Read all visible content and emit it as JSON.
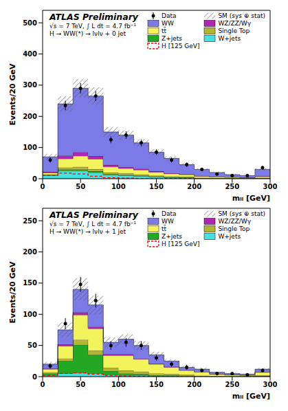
{
  "chart_data": [
    {
      "type": "histogram",
      "title": "ATLAS Preliminary",
      "subtitle": "√s = 7 TeV, ∫ L dt = 4.7 fb⁻¹",
      "annotations": [
        "H → WW(*) → lνlν + 0 jet"
      ],
      "x_label": "mₗₗ [GeV]",
      "y_label": "Events/20 GeV",
      "bins": [
        0,
        20,
        40,
        60,
        80,
        100,
        120,
        140,
        160,
        180,
        200,
        220,
        240,
        260,
        280,
        300
      ],
      "xlim": [
        0,
        300
      ],
      "xticks": [
        0,
        50,
        100,
        150,
        200,
        250,
        300
      ],
      "ylim": [
        0,
        540
      ],
      "yticks": [
        0,
        100,
        200,
        300,
        400,
        500
      ],
      "stacked": true,
      "legend": "top-right",
      "grid": false,
      "series": [
        {
          "name": "Data",
          "type": "scatter",
          "color": "#000000",
          "marker": "circle",
          "values": [
            60,
            235,
            290,
            265,
            125,
            140,
            115,
            85,
            60,
            45,
            30,
            15,
            10,
            10,
            35
          ],
          "errors": [
            8,
            15,
            17,
            16,
            11,
            12,
            11,
            9,
            8,
            7,
            5,
            4,
            3,
            3,
            6
          ]
        },
        {
          "name": "SM (sys ⊕ stat)",
          "type": "band",
          "color": "#555555",
          "errors": [
            10,
            25,
            30,
            28,
            16,
            15,
            12,
            9,
            7,
            5,
            3,
            2,
            2,
            1.5,
            4
          ]
        },
        {
          "name": "WW",
          "type": "area",
          "color": "#7b7be8",
          "values": [
            48,
            166,
            205,
            192,
            106,
            102,
            83,
            61,
            47,
            30,
            21,
            13,
            8,
            6,
            22
          ]
        },
        {
          "name": "WZ/ZZ/Wγ",
          "type": "area",
          "color": "#b026b0",
          "values": [
            3,
            10,
            12,
            10,
            6,
            5,
            4,
            3,
            2,
            2,
            1,
            1,
            0.5,
            0.5,
            1
          ]
        },
        {
          "name": "tt̄",
          "type": "area",
          "color": "#f2f25a",
          "values": [
            5,
            28,
            35,
            32,
            18,
            16,
            14,
            11,
            9,
            7,
            5,
            4,
            3,
            2,
            4
          ]
        },
        {
          "name": "Single Top",
          "type": "area",
          "color": "#b5b535",
          "values": [
            2,
            6,
            8,
            7,
            5,
            5,
            4,
            3,
            2,
            2,
            1,
            1,
            0.5,
            0.5,
            1
          ]
        },
        {
          "name": "Z+jets",
          "type": "area",
          "color": "#22a822",
          "values": [
            2,
            5,
            5,
            4,
            3,
            2,
            2,
            1,
            1,
            1,
            0,
            0,
            0,
            0,
            0
          ]
        },
        {
          "name": "W+jets",
          "type": "area",
          "color": "#45e0e0",
          "values": [
            10,
            25,
            25,
            20,
            12,
            10,
            8,
            6,
            4,
            3,
            2,
            1,
            1,
            1,
            2
          ]
        },
        {
          "name": "H [125 GeV]",
          "type": "line",
          "color": "#ff0000",
          "line_style": "dashed",
          "values": [
            10,
            18,
            15,
            8,
            3,
            2,
            1,
            1,
            0.5,
            0.5,
            0,
            0,
            0,
            0,
            0
          ]
        }
      ]
    },
    {
      "type": "histogram",
      "title": "ATLAS Preliminary",
      "subtitle": "√s = 7 TeV, ∫ L dt = 4.7 fb⁻¹",
      "annotations": [
        "H → WW(*) → lνlν + 1 jet"
      ],
      "x_label": "mₗₗ [GeV]",
      "y_label": "Events/20 GeV",
      "bins": [
        0,
        20,
        40,
        60,
        80,
        100,
        120,
        140,
        160,
        180,
        200,
        220,
        240,
        260,
        280,
        300
      ],
      "xlim": [
        0,
        300
      ],
      "xticks": [
        0,
        50,
        100,
        150,
        200,
        250,
        300
      ],
      "ylim": [
        0,
        270
      ],
      "yticks": [
        0,
        50,
        100,
        150,
        200,
        250
      ],
      "stacked": true,
      "legend": "top-right",
      "grid": false,
      "series": [
        {
          "name": "Data",
          "type": "scatter",
          "color": "#000000",
          "marker": "circle",
          "values": [
            17,
            85,
            148,
            122,
            50,
            55,
            50,
            30,
            20,
            15,
            10,
            5,
            5,
            3,
            10
          ],
          "errors": [
            4,
            9,
            12,
            11,
            7,
            7,
            7,
            5,
            4,
            4,
            3,
            2,
            2,
            2,
            3
          ]
        },
        {
          "name": "SM (sys ⊕ stat)",
          "type": "band",
          "color": "#555555",
          "errors": [
            4,
            12,
            18,
            15,
            8,
            8,
            7,
            5,
            3,
            2,
            2,
            1,
            1,
            0.8,
            2
          ]
        },
        {
          "name": "WW",
          "type": "area",
          "color": "#7b7be8",
          "values": [
            7,
            23,
            37,
            35,
            19,
            24,
            21,
            14,
            9,
            4.5,
            4,
            2.7,
            2.1,
            1.7,
            4.5
          ]
        },
        {
          "name": "WZ/ZZ/Wγ",
          "type": "area",
          "color": "#b026b0",
          "values": [
            1,
            3,
            4,
            3,
            2,
            2,
            1,
            1,
            1,
            0.5,
            0.5,
            0.3,
            0.2,
            0.2,
            0.5
          ]
        },
        {
          "name": "tt̄",
          "type": "area",
          "color": "#f2f25a",
          "values": [
            5,
            20,
            40,
            35,
            20,
            24,
            20,
            15,
            11,
            7,
            6,
            3,
            2,
            1.5,
            5
          ]
        },
        {
          "name": "Single Top",
          "type": "area",
          "color": "#b5b535",
          "values": [
            2,
            4,
            8,
            7,
            5,
            5,
            4,
            3,
            2,
            1.5,
            1,
            0.7,
            0.5,
            0.4,
            1
          ]
        },
        {
          "name": "Z+jets",
          "type": "area",
          "color": "#22a822",
          "values": [
            3,
            20,
            45,
            30,
            6,
            3,
            2,
            1,
            1,
            0.5,
            0,
            0,
            0,
            0,
            0.5
          ]
        },
        {
          "name": "W+jets",
          "type": "area",
          "color": "#45e0e0",
          "values": [
            2,
            5,
            6,
            5,
            3,
            2,
            2,
            1,
            1,
            1,
            0.5,
            0.3,
            0.2,
            0.2,
            0.5
          ]
        },
        {
          "name": "H [125 GeV]",
          "type": "line",
          "color": "#ff0000",
          "line_style": "dashed",
          "values": [
            2,
            5,
            6,
            4,
            2,
            1,
            0.5,
            0.5,
            0,
            0,
            0,
            0,
            0,
            0,
            0
          ]
        }
      ]
    }
  ]
}
